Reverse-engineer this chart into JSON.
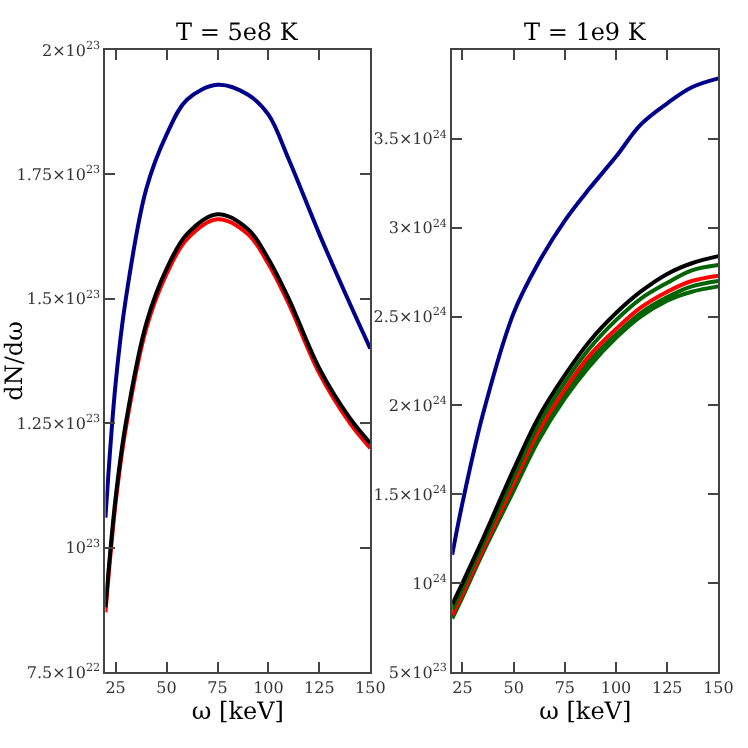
{
  "chart_data": [
    {
      "type": "line",
      "title": "T = 5e8 K",
      "xlabel": "ω [keV]",
      "ylabel": "dN/dω",
      "x": [
        20,
        25,
        30,
        40,
        50,
        60,
        75,
        90,
        100,
        110,
        125,
        140,
        150
      ],
      "series": [
        {
          "color": "#00008b",
          "values": [
            1.06e+23,
            1.33e+23,
            1.5e+23,
            1.72e+23,
            1.83e+23,
            1.9e+23,
            1.93e+23,
            1.91e+23,
            1.87e+23,
            1.78e+23,
            1.63e+23,
            1.49e+23,
            1.4e+23
          ]
        },
        {
          "color": "#ff0000",
          "values": [
            8.7e+22,
            1.09e+23,
            1.24e+23,
            1.44e+23,
            1.55e+23,
            1.62e+23,
            1.66e+23,
            1.63e+23,
            1.57e+23,
            1.49e+23,
            1.35e+23,
            1.25e+23,
            1.2e+23
          ]
        },
        {
          "color": "#000000",
          "values": [
            8.8e+22,
            1.1e+23,
            1.25e+23,
            1.45e+23,
            1.56e+23,
            1.63e+23,
            1.67e+23,
            1.64e+23,
            1.58e+23,
            1.5e+23,
            1.36e+23,
            1.26e+23,
            1.21e+23
          ]
        }
      ],
      "xlim": [
        20,
        150
      ],
      "xticks": [
        25,
        50,
        75,
        100,
        125,
        150
      ],
      "ylim": [
        7.5e+22,
        2e+23
      ],
      "yticks": [
        {
          "value": 7.5e+22,
          "label": "7.5×10$^{22}$"
        },
        {
          "value": 1e+23,
          "label": "10$^{23}$"
        },
        {
          "value": 1.25e+23,
          "label": "1.25×10$^{23}$"
        },
        {
          "value": 1.5e+23,
          "label": "1.5×10$^{23}$"
        },
        {
          "value": 1.75e+23,
          "label": "1.75×10$^{23}$"
        },
        {
          "value": 2e+23,
          "label": "2×10$^{23}$"
        }
      ],
      "marker": "none",
      "line_style": "solid"
    },
    {
      "type": "line",
      "title": "T = 1e9 K",
      "xlabel": "ω [keV]",
      "x": [
        20,
        25,
        35,
        50,
        62,
        75,
        87,
        100,
        112,
        125,
        137,
        150
      ],
      "series": [
        {
          "color": "#00008b",
          "values": [
            1.16e+24,
            1.45e+24,
            1.95e+24,
            2.52e+24,
            2.8e+24,
            3.04e+24,
            3.22e+24,
            3.4e+24,
            3.58e+24,
            3.7e+24,
            3.79e+24,
            3.84e+24
          ]
        },
        {
          "color": "#006400",
          "values": [
            8e+23,
            9.2e+23,
            1.17e+24,
            1.52e+24,
            1.8e+24,
            2.04e+24,
            2.22e+24,
            2.38e+24,
            2.5e+24,
            2.59e+24,
            2.64e+24,
            2.67e+24
          ]
        },
        {
          "color": "#006400",
          "values": [
            8.1e+23,
            9.3e+23,
            1.18e+24,
            1.54e+24,
            1.82e+24,
            2.06e+24,
            2.25e+24,
            2.4e+24,
            2.52e+24,
            2.61e+24,
            2.67e+24,
            2.7e+24
          ]
        },
        {
          "color": "#ff0000",
          "values": [
            8.2e+23,
            9.4e+23,
            1.19e+24,
            1.56e+24,
            1.85e+24,
            2.09e+24,
            2.28e+24,
            2.43e+24,
            2.55e+24,
            2.64e+24,
            2.7e+24,
            2.73e+24
          ]
        },
        {
          "color": "#006400",
          "values": [
            8.5e+23,
            9.7e+23,
            1.22e+24,
            1.6e+24,
            1.89e+24,
            2.13e+24,
            2.32e+24,
            2.48e+24,
            2.6e+24,
            2.69e+24,
            2.76e+24,
            2.79e+24
          ]
        },
        {
          "color": "#000000",
          "values": [
            8.8e+23,
            1e+24,
            1.25e+24,
            1.64e+24,
            1.93e+24,
            2.17e+24,
            2.36e+24,
            2.52e+24,
            2.64e+24,
            2.74e+24,
            2.8e+24,
            2.84e+24
          ]
        }
      ],
      "xlim": [
        20,
        150
      ],
      "xticks": [
        25,
        50,
        75,
        100,
        125,
        150
      ],
      "ylim": [
        5e+23,
        4e+24
      ],
      "yticks": [
        {
          "value": 5e+23,
          "label": "5×10$^{23}$"
        },
        {
          "value": 1e+24,
          "label": "10$^{24}$"
        },
        {
          "value": 1.5e+24,
          "label": "1.5×10$^{24}$"
        },
        {
          "value": 2e+24,
          "label": "2×10$^{24}$"
        },
        {
          "value": 2.5e+24,
          "label": "2.5×10$^{24}$"
        },
        {
          "value": 3e+24,
          "label": "3×10$^{24}$"
        },
        {
          "value": 3.5e+24,
          "label": "3.5×10$^{24}$"
        }
      ],
      "marker": "none",
      "line_style": "solid"
    }
  ]
}
